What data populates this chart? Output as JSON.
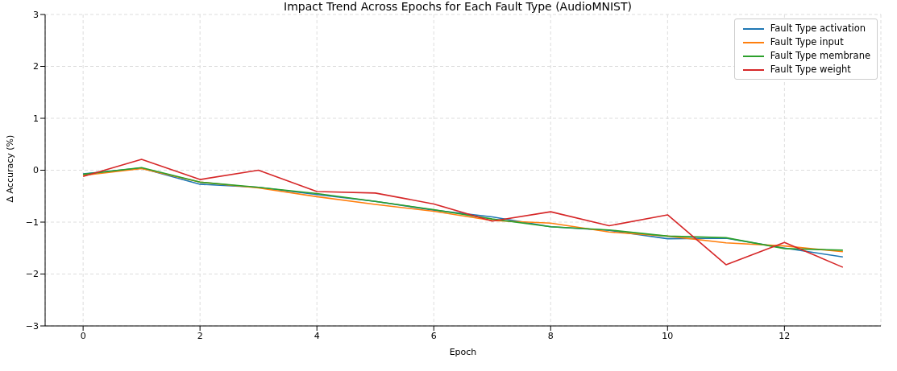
{
  "chart_data": {
    "type": "line",
    "title": "Impact Trend Across Epochs for Each Fault Type (AudioMNIST)",
    "xlabel": "Epoch",
    "ylabel": "Δ Accuracy (%)",
    "x": [
      0,
      1,
      2,
      3,
      4,
      5,
      6,
      7,
      8,
      9,
      10,
      11,
      12,
      13
    ],
    "series": [
      {
        "name": "Fault Type activation",
        "color": "#1f77b4",
        "values": [
          -0.07,
          0.04,
          -0.27,
          -0.33,
          -0.47,
          -0.6,
          -0.77,
          -0.9,
          -1.09,
          -1.16,
          -1.32,
          -1.31,
          -1.5,
          -1.67
        ]
      },
      {
        "name": "Fault Type input",
        "color": "#ff7f0e",
        "values": [
          -0.1,
          0.03,
          -0.23,
          -0.34,
          -0.51,
          -0.66,
          -0.79,
          -0.97,
          -1.02,
          -1.19,
          -1.27,
          -1.4,
          -1.46,
          -1.57
        ]
      },
      {
        "name": "Fault Type membrane",
        "color": "#2ca02c",
        "values": [
          -0.08,
          0.05,
          -0.23,
          -0.33,
          -0.45,
          -0.6,
          -0.76,
          -0.94,
          -1.09,
          -1.15,
          -1.27,
          -1.3,
          -1.51,
          -1.54
        ]
      },
      {
        "name": "Fault Type weight",
        "color": "#d62728",
        "values": [
          -0.12,
          0.21,
          -0.18,
          0.0,
          -0.41,
          -0.44,
          -0.65,
          -0.98,
          -0.8,
          -1.07,
          -0.86,
          -1.82,
          -1.39,
          -1.87
        ]
      }
    ],
    "xlim": [
      -0.65,
      13.65
    ],
    "xticks": [
      0,
      2,
      4,
      6,
      8,
      10,
      12
    ],
    "ylim": [
      -3,
      3
    ],
    "yticks": [
      -3,
      -2,
      -1,
      0,
      1,
      2,
      3
    ],
    "grid": true,
    "legend": "top right",
    "marker": "none",
    "line_style": "solid"
  }
}
